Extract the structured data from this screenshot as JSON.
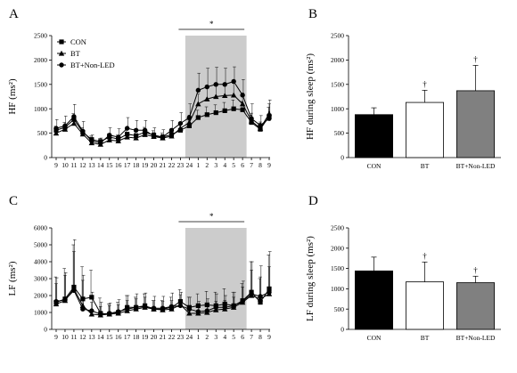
{
  "chart_data": [
    {
      "panel": "A",
      "type": "line",
      "ylabel": "HF (ms²)",
      "ylim": [
        0,
        2500
      ],
      "yticks": [
        0,
        500,
        1000,
        1500,
        2000,
        2500
      ],
      "x": [
        "9",
        "10",
        "11",
        "12",
        "13",
        "14",
        "15",
        "16",
        "17",
        "18",
        "19",
        "20",
        "21",
        "22",
        "23",
        "24",
        "1",
        "2",
        "3",
        "4",
        "5",
        "6",
        "7",
        "8",
        "9"
      ],
      "shaded_range": [
        "24",
        "6"
      ],
      "annotation": "*",
      "series": [
        {
          "name": "CON",
          "marker": "square",
          "values": [
            560,
            620,
            780,
            520,
            370,
            330,
            420,
            380,
            480,
            450,
            520,
            460,
            420,
            470,
            560,
            650,
            820,
            880,
            920,
            960,
            1000,
            980,
            720,
            580,
            850
          ],
          "err": [
            80,
            100,
            120,
            90,
            70,
            60,
            70,
            80,
            90,
            80,
            100,
            90,
            80,
            90,
            100,
            120,
            150,
            160,
            160,
            170,
            180,
            170,
            150,
            120,
            180
          ]
        },
        {
          "name": "BT",
          "marker": "triangle",
          "values": [
            500,
            580,
            700,
            480,
            300,
            270,
            360,
            340,
            420,
            400,
            470,
            430,
            400,
            440,
            600,
            720,
            1100,
            1200,
            1250,
            1270,
            1280,
            1100,
            750,
            600,
            900
          ],
          "err": [
            70,
            90,
            110,
            80,
            60,
            50,
            60,
            70,
            80,
            80,
            90,
            80,
            70,
            80,
            100,
            150,
            200,
            220,
            230,
            230,
            240,
            220,
            160,
            130,
            200
          ]
        },
        {
          "name": "BT+Non-LED",
          "marker": "circle",
          "values": [
            600,
            650,
            840,
            540,
            340,
            300,
            460,
            420,
            600,
            560,
            560,
            440,
            420,
            560,
            700,
            820,
            1380,
            1450,
            1500,
            1500,
            1560,
            1280,
            800,
            660,
            800
          ],
          "err": [
            180,
            200,
            250,
            200,
            120,
            100,
            150,
            170,
            220,
            200,
            200,
            170,
            150,
            200,
            220,
            280,
            350,
            380,
            350,
            330,
            300,
            320,
            300,
            200,
            380
          ]
        }
      ]
    },
    {
      "panel": "B",
      "type": "bar",
      "ylabel": "HF during sleep (ms²)",
      "ylim": [
        0,
        2500
      ],
      "yticks": [
        0,
        500,
        1000,
        1500,
        2000,
        2500
      ],
      "categories": [
        "CON",
        "BT",
        "BT+Non-LED"
      ],
      "values": [
        880,
        1130,
        1370
      ],
      "err": [
        140,
        250,
        520
      ],
      "fills": [
        "#000000",
        "#ffffff",
        "#808080"
      ],
      "markers": [
        "",
        "†",
        "†"
      ]
    },
    {
      "panel": "C",
      "type": "line",
      "ylabel": "LF (ms²)",
      "ylim": [
        0,
        6000
      ],
      "yticks": [
        0,
        1000,
        2000,
        3000,
        4000,
        5000,
        6000
      ],
      "x": [
        "9",
        "10",
        "11",
        "12",
        "13",
        "14",
        "15",
        "16",
        "17",
        "18",
        "19",
        "20",
        "21",
        "22",
        "23",
        "24",
        "1",
        "2",
        "3",
        "4",
        "5",
        "6",
        "7",
        "8",
        "9"
      ],
      "shaded_range": [
        "24",
        "6"
      ],
      "annotation": "*",
      "series": [
        {
          "name": "CON",
          "marker": "square",
          "values": [
            1600,
            1800,
            2500,
            1800,
            1900,
            950,
            900,
            1000,
            1300,
            1300,
            1400,
            1200,
            1200,
            1300,
            1650,
            1300,
            1400,
            1450,
            1400,
            1500,
            1400,
            1700,
            2200,
            1600,
            2400
          ],
          "err": [
            1500,
            1800,
            2500,
            1900,
            1600,
            900,
            600,
            600,
            700,
            600,
            700,
            500,
            500,
            600,
            700,
            600,
            700,
            800,
            800,
            900,
            800,
            1000,
            1800,
            1400,
            2000
          ]
        },
        {
          "name": "BT",
          "marker": "triangle",
          "values": [
            1500,
            1700,
            2400,
            1400,
            900,
            850,
            900,
            950,
            1100,
            1200,
            1300,
            1200,
            1150,
            1200,
            1450,
            950,
            950,
            1000,
            1150,
            1200,
            1300,
            1600,
            2000,
            1800,
            2100
          ],
          "err": [
            1200,
            1500,
            2200,
            1500,
            700,
            500,
            500,
            500,
            600,
            600,
            600,
            500,
            500,
            500,
            600,
            400,
            400,
            500,
            500,
            500,
            600,
            900,
            1500,
            1300,
            1600
          ]
        },
        {
          "name": "BT+Non-LED",
          "marker": "circle",
          "values": [
            1650,
            1750,
            2300,
            1200,
            1100,
            900,
            950,
            1050,
            1200,
            1300,
            1350,
            1250,
            1250,
            1350,
            1400,
            1200,
            1050,
            1100,
            1300,
            1300,
            1400,
            1650,
            2100,
            1950,
            2200
          ],
          "err": [
            1400,
            1600,
            3000,
            2000,
            1100,
            700,
            600,
            700,
            800,
            800,
            800,
            700,
            700,
            800,
            800,
            700,
            600,
            700,
            800,
            700,
            800,
            1200,
            1900,
            1800,
            2400
          ]
        }
      ]
    },
    {
      "panel": "D",
      "type": "bar",
      "ylabel": "LF during sleep (ms²)",
      "ylim": [
        0,
        2500
      ],
      "yticks": [
        0,
        500,
        1000,
        1500,
        2000,
        2500
      ],
      "categories": [
        "CON",
        "BT",
        "BT+Non-LED"
      ],
      "values": [
        1440,
        1170,
        1150
      ],
      "err": [
        340,
        490,
        160
      ],
      "fills": [
        "#000000",
        "#ffffff",
        "#808080"
      ],
      "markers": [
        "",
        "†",
        "†"
      ]
    }
  ],
  "colors": {
    "shade": "#cccccc",
    "axis": "#000000",
    "line": "#000000"
  }
}
